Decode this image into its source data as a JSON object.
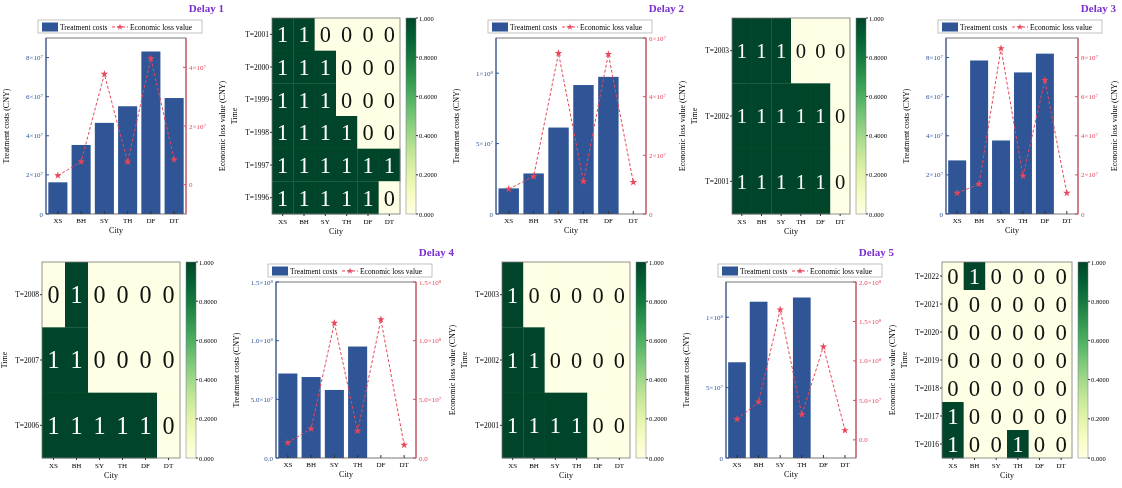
{
  "chart_data": [
    {
      "type": "bar",
      "title": "Delay 1",
      "categories": [
        "XS",
        "BH",
        "SY",
        "TH",
        "DF",
        "DT"
      ],
      "xlabel": "City",
      "ylabel": "Treatment costs (CNY)",
      "y2label": "Economic loss value (CNY)",
      "legend": "top",
      "marker": "star",
      "line_style": "dashed",
      "series": [
        {
          "name": "Treatment costs",
          "type": "bar",
          "color": "#2f5597",
          "values": [
            16200000,
            35300000,
            46600000,
            55100000,
            83100000,
            59300000
          ]
        },
        {
          "name": "Economic loss value",
          "type": "line",
          "axis": "y2",
          "color": "#e8475a",
          "values": [
            3100000,
            7800000,
            37700000,
            7700000,
            43000000,
            8600000
          ]
        }
      ],
      "ylim": [
        0,
        90000000
      ],
      "yticks": [
        {
          "value": 0,
          "label": "0"
        },
        {
          "value": 20000000,
          "label": "2×10$^{7}$"
        },
        {
          "value": 40000000,
          "label": "4×10$^{7}$"
        },
        {
          "value": 60000000,
          "label": "6×10$^{7}$"
        },
        {
          "value": 80000000,
          "label": "8×10$^{7}$"
        }
      ],
      "y2lim": [
        -10000000,
        50000000
      ],
      "y2ticks": [
        {
          "value": 0,
          "label": "0"
        },
        {
          "value": 20000000,
          "label": "2×10$^{7}$"
        },
        {
          "value": 40000000,
          "label": "4×10$^{7}$"
        }
      ]
    },
    {
      "type": "heatmap",
      "categories": [
        "XS",
        "BH",
        "SY",
        "TH",
        "DF",
        "DT"
      ],
      "y_categories": [
        "T=2001",
        "T=2000",
        "T=1999",
        "T=1998",
        "T=1997",
        "T=1996"
      ],
      "xlabel": "City",
      "ylabel": "Time",
      "data_labels": true,
      "clim": [
        0,
        1
      ],
      "cticks": [
        {
          "value": 0,
          "label": "0.000"
        },
        {
          "value": 0.2,
          "label": "0.2000"
        },
        {
          "value": 0.4,
          "label": "0.4000"
        },
        {
          "value": 0.6,
          "label": "0.6000"
        },
        {
          "value": 0.8,
          "label": "0.8000"
        },
        {
          "value": 1,
          "label": "1.000"
        }
      ],
      "cells": [
        [
          1,
          1,
          0,
          0,
          0,
          0
        ],
        [
          1,
          1,
          1,
          0,
          0,
          0
        ],
        [
          1,
          1,
          1,
          0,
          0,
          0
        ],
        [
          1,
          1,
          1,
          1,
          0,
          0
        ],
        [
          1,
          1,
          1,
          1,
          1,
          1
        ],
        [
          1,
          1,
          1,
          1,
          1,
          0
        ]
      ]
    },
    {
      "type": "bar",
      "title": "Delay 2",
      "categories": [
        "XS",
        "BH",
        "SY",
        "TH",
        "DF",
        "DT"
      ],
      "xlabel": "City",
      "ylabel": "Treatment costs (CNY)",
      "y2label": "Economic loss value (CNY)",
      "legend": "top",
      "marker": "star",
      "line_style": "dashed",
      "series": [
        {
          "name": "Treatment costs",
          "type": "bar",
          "color": "#2f5597",
          "values": [
            18200000,
            28800000,
            61400000,
            91600000,
            97400000,
            0
          ]
        },
        {
          "name": "Economic loss value",
          "type": "line",
          "axis": "y2",
          "color": "#e8475a",
          "values": [
            8500000,
            12800000,
            54800000,
            11100000,
            54500000,
            10800000
          ]
        }
      ],
      "ylim": [
        0,
        125000000
      ],
      "yticks": [
        {
          "value": 0,
          "label": "0"
        },
        {
          "value": 50000000,
          "label": "5×10$^{7}$"
        },
        {
          "value": 100000000,
          "label": "1×10$^{8}$"
        }
      ],
      "y2lim": [
        0,
        60000000
      ],
      "y2ticks": [
        {
          "value": 0,
          "label": "0"
        },
        {
          "value": 20000000,
          "label": "2×10$^{7}$"
        },
        {
          "value": 40000000,
          "label": "4×10$^{7}$"
        },
        {
          "value": 60000000,
          "label": "6×10$^{7}$"
        }
      ]
    },
    {
      "type": "heatmap",
      "categories": [
        "XS",
        "BH",
        "SY",
        "TH",
        "DF",
        "DT"
      ],
      "y_categories": [
        "T=2003",
        "T=2002",
        "T=2001"
      ],
      "xlabel": "City",
      "ylabel": "Time",
      "data_labels": true,
      "clim": [
        0,
        1
      ],
      "cticks": [
        {
          "value": 0,
          "label": "0.000"
        },
        {
          "value": 0.2,
          "label": "0.2000"
        },
        {
          "value": 0.4,
          "label": "0.4000"
        },
        {
          "value": 0.6,
          "label": "0.6000"
        },
        {
          "value": 0.8,
          "label": "0.8000"
        },
        {
          "value": 1,
          "label": "1.000"
        }
      ],
      "cells": [
        [
          1,
          1,
          1,
          0,
          0,
          0
        ],
        [
          1,
          1,
          1,
          1,
          1,
          0
        ],
        [
          1,
          1,
          1,
          1,
          1,
          0
        ]
      ]
    },
    {
      "type": "bar",
      "title": "Delay 3",
      "categories": [
        "XS",
        "BH",
        "SY",
        "TH",
        "DF",
        "DT"
      ],
      "xlabel": "City",
      "ylabel": "Treatment costs (CNY)",
      "y2label": "Economic loss value (CNY)",
      "legend": "top",
      "marker": "star",
      "line_style": "dashed",
      "series": [
        {
          "name": "Treatment costs",
          "type": "bar",
          "color": "#2f5597",
          "values": [
            27400000,
            78500000,
            37600000,
            72400000,
            82000000,
            0
          ]
        },
        {
          "name": "Economic loss value",
          "type": "line",
          "axis": "y2",
          "color": "#e8475a",
          "values": [
            10700000,
            15300000,
            84700000,
            19500000,
            68400000,
            10700000
          ]
        }
      ],
      "ylim": [
        0,
        90000000
      ],
      "yticks": [
        {
          "value": 0,
          "label": "0"
        },
        {
          "value": 20000000,
          "label": "2×10$^{7}$"
        },
        {
          "value": 40000000,
          "label": "4×10$^{7}$"
        },
        {
          "value": 60000000,
          "label": "6×10$^{7}$"
        },
        {
          "value": 80000000,
          "label": "8×10$^{7}$"
        }
      ],
      "y2lim": [
        0,
        90000000
      ],
      "y2ticks": [
        {
          "value": 0,
          "label": "0"
        },
        {
          "value": 20000000,
          "label": "2×10$^{7}$"
        },
        {
          "value": 40000000,
          "label": "4×10$^{7}$"
        },
        {
          "value": 60000000,
          "label": "6×10$^{7}$"
        },
        {
          "value": 80000000,
          "label": "8×10$^{7}$"
        }
      ]
    },
    {
      "type": "heatmap",
      "categories": [
        "XS",
        "BH",
        "SY",
        "TH",
        "DF",
        "DT"
      ],
      "y_categories": [
        "T=2008",
        "T=2007",
        "T=2006"
      ],
      "xlabel": "City",
      "ylabel": "Time",
      "data_labels": true,
      "clim": [
        0,
        1
      ],
      "cticks": [
        {
          "value": 0,
          "label": "0.000"
        },
        {
          "value": 0.2,
          "label": "0.2000"
        },
        {
          "value": 0.4,
          "label": "0.4000"
        },
        {
          "value": 0.6,
          "label": "0.6000"
        },
        {
          "value": 0.8,
          "label": "0.8000"
        },
        {
          "value": 1,
          "label": "1.000"
        }
      ],
      "cells": [
        [
          0,
          1,
          0,
          0,
          0,
          0
        ],
        [
          1,
          1,
          0,
          0,
          0,
          0
        ],
        [
          1,
          1,
          1,
          1,
          1,
          0
        ]
      ]
    },
    {
      "type": "bar",
      "title": "Delay 4",
      "categories": [
        "XS",
        "BH",
        "SY",
        "TH",
        "DF",
        "DT"
      ],
      "xlabel": "City",
      "ylabel": "Treatment costs (CNY)",
      "y2label": "Economic loss value (CNY)",
      "legend": "top",
      "marker": "star",
      "line_style": "dashed",
      "series": [
        {
          "name": "Treatment costs",
          "type": "bar",
          "color": "#2f5597",
          "values": [
            72000000,
            69000000,
            58000000,
            95000000,
            0,
            0
          ]
        },
        {
          "name": "Economic loss value",
          "type": "line",
          "axis": "y2",
          "color": "#e8475a",
          "values": [
            13000000,
            25000000,
            115000000,
            23000000,
            118000000,
            11000000
          ]
        }
      ],
      "ylim": [
        0,
        150000000
      ],
      "yticks": [
        {
          "value": 0,
          "label": "0.0"
        },
        {
          "value": 50000000,
          "label": "5.0×10$^{7}$"
        },
        {
          "value": 100000000,
          "label": "1.0×10$^{8}$"
        },
        {
          "value": 150000000,
          "label": "1.5×10$^{8}$"
        }
      ],
      "y2lim": [
        0,
        150000000
      ],
      "y2ticks": [
        {
          "value": 0,
          "label": "0.0"
        },
        {
          "value": 50000000,
          "label": "5.0×10$^{7}$"
        },
        {
          "value": 100000000,
          "label": "1.0×10$^{8}$"
        },
        {
          "value": 150000000,
          "label": "1.5×10$^{8}$"
        }
      ]
    },
    {
      "type": "heatmap",
      "categories": [
        "XS",
        "BH",
        "SY",
        "TH",
        "DF",
        "DT"
      ],
      "y_categories": [
        "T=2003",
        "T=2002",
        "T=2001"
      ],
      "xlabel": "City",
      "ylabel": "Time",
      "data_labels": true,
      "clim": [
        0,
        1
      ],
      "cticks": [
        {
          "value": 0,
          "label": "0.000"
        },
        {
          "value": 0.2,
          "label": "0.2000"
        },
        {
          "value": 0.4,
          "label": "0.4000"
        },
        {
          "value": 0.6,
          "label": "0.6000"
        },
        {
          "value": 0.8,
          "label": "0.8000"
        },
        {
          "value": 1,
          "label": "1.000"
        }
      ],
      "cells": [
        [
          1,
          0,
          0,
          0,
          0,
          0
        ],
        [
          1,
          1,
          0,
          0,
          0,
          0
        ],
        [
          1,
          1,
          1,
          1,
          0,
          0
        ]
      ]
    },
    {
      "type": "bar",
      "title": "Delay 5",
      "categories": [
        "XS",
        "BH",
        "SY",
        "TH",
        "DF",
        "DT"
      ],
      "xlabel": "City",
      "ylabel": "Treatment costs (CNY)",
      "y2label": "Economic loss value (CNY)",
      "legend": "top",
      "marker": "star",
      "line_style": "dashed",
      "series": [
        {
          "name": "Treatment costs",
          "type": "bar",
          "color": "#2f5597",
          "values": [
            68000000,
            111000000,
            0,
            114000000,
            0,
            0
          ]
        },
        {
          "name": "Economic loss value",
          "type": "line",
          "axis": "y2",
          "color": "#e8475a",
          "values": [
            26000000,
            48000000,
            165000000,
            32000000,
            118000000,
            12000000
          ]
        }
      ],
      "ylim": [
        0,
        125000000
      ],
      "yticks": [
        {
          "value": 0,
          "label": "0"
        },
        {
          "value": 50000000,
          "label": "5×10$^{7}$"
        },
        {
          "value": 100000000,
          "label": "1×10$^{8}$"
        }
      ],
      "y2lim": [
        -23000000,
        200000000
      ],
      "y2ticks": [
        {
          "value": 0,
          "label": "0.0"
        },
        {
          "value": 50000000,
          "label": "5.0×10$^{7}$"
        },
        {
          "value": 100000000,
          "label": "1.0×10$^{8}$"
        },
        {
          "value": 150000000,
          "label": "1.5×10$^{8}$"
        },
        {
          "value": 200000000,
          "label": "2.0×10$^{8}$"
        }
      ]
    },
    {
      "type": "heatmap",
      "categories": [
        "XS",
        "BH",
        "SY",
        "TH",
        "DF",
        "DT"
      ],
      "y_categories": [
        "T=2022",
        "T=2021",
        "T=2020",
        "T=2019",
        "T=2018",
        "T=2017",
        "T=2016"
      ],
      "xlabel": "City",
      "ylabel": "Time",
      "data_labels": true,
      "clim": [
        0,
        1
      ],
      "cticks": [
        {
          "value": 0,
          "label": "0.000"
        },
        {
          "value": 0.2,
          "label": "0.2000"
        },
        {
          "value": 0.4,
          "label": "0.4000"
        },
        {
          "value": 0.6,
          "label": "0.6000"
        },
        {
          "value": 0.8,
          "label": "0.8000"
        },
        {
          "value": 1,
          "label": "1.000"
        }
      ],
      "cells": [
        [
          0,
          1,
          0,
          0,
          0,
          0
        ],
        [
          0,
          0,
          0,
          0,
          0,
          0
        ],
        [
          0,
          0,
          0,
          0,
          0,
          0
        ],
        [
          0,
          0,
          0,
          0,
          0,
          0
        ],
        [
          0,
          0,
          0,
          0,
          0,
          0
        ],
        [
          1,
          0,
          0,
          0,
          0,
          0
        ],
        [
          1,
          0,
          0,
          1,
          0,
          0
        ]
      ]
    }
  ]
}
